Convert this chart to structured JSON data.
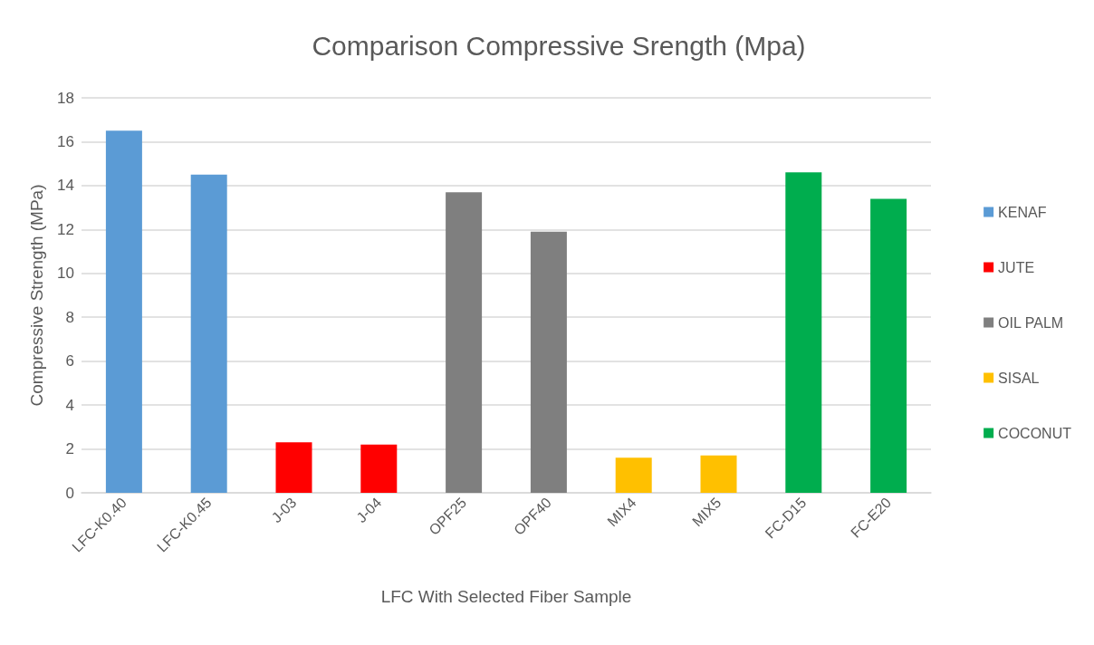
{
  "chart_data": {
    "type": "bar",
    "title": "Comparison Compressive Srength (Mpa)",
    "xlabel": "LFC With Selected Fiber Sample",
    "ylabel": "Compressive Strength (MPa)",
    "categories": [
      "LFC-K0.40",
      "LFC-K0.45",
      "J-03",
      "J-04",
      "OPF25",
      "OPF40",
      "MIX4",
      "MIX5",
      "FC-D15",
      "FC-E20"
    ],
    "series": [
      {
        "name": "KENAF",
        "color": "#5b9bd5",
        "values": [
          16.5,
          14.5,
          null,
          null,
          null,
          null,
          null,
          null,
          null,
          null
        ]
      },
      {
        "name": "JUTE",
        "color": "#ff0000",
        "values": [
          null,
          null,
          2.3,
          2.2,
          null,
          null,
          null,
          null,
          null,
          null
        ]
      },
      {
        "name": "OIL PALM",
        "color": "#7f7f7f",
        "values": [
          null,
          null,
          null,
          null,
          13.7,
          11.9,
          null,
          null,
          null,
          null
        ]
      },
      {
        "name": "SISAL",
        "color": "#ffc000",
        "values": [
          null,
          null,
          null,
          null,
          null,
          null,
          1.6,
          1.7,
          null,
          null
        ]
      },
      {
        "name": "COCONUT",
        "color": "#00ad4e",
        "values": [
          null,
          null,
          null,
          null,
          null,
          null,
          null,
          null,
          14.6,
          13.4
        ]
      }
    ],
    "stacked": true,
    "ylim": [
      0,
      18
    ],
    "yticks": [
      0,
      2,
      4,
      6,
      8,
      10,
      12,
      14,
      16,
      18
    ],
    "grid": "y",
    "legend": "right"
  }
}
